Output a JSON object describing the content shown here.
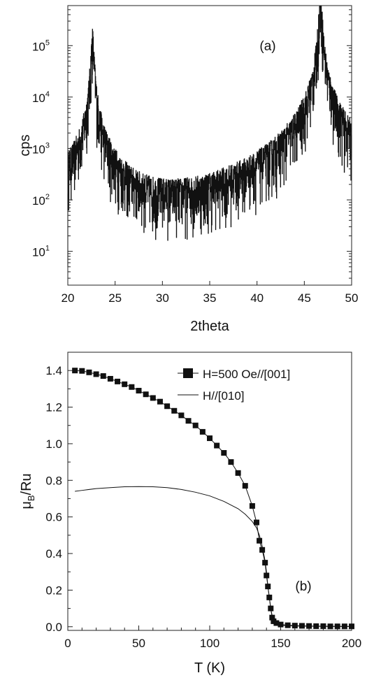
{
  "chart_data": [
    {
      "type": "line",
      "panel_label": "(a)",
      "xlabel": "2theta",
      "ylabel": "cps",
      "xlim": [
        20,
        50
      ],
      "ylim": [
        2.2,
        600000
      ],
      "y_scale": "log",
      "x_ticks": [
        "20",
        "25",
        "30",
        "35",
        "40",
        "45",
        "50"
      ],
      "y_ticks": [
        {
          "base": "10",
          "exp": "1",
          "value": 10
        },
        {
          "base": "10",
          "exp": "2",
          "value": 100
        },
        {
          "base": "10",
          "exp": "3",
          "value": 1000
        },
        {
          "base": "10",
          "exp": "4",
          "value": 10000
        },
        {
          "base": "10",
          "exp": "5",
          "value": 100000
        }
      ],
      "grid": false,
      "series": [
        {
          "peaks": [
            {
              "x": 22.6,
              "y": 90000
            },
            {
              "x": 46.7,
              "y": 600000
            }
          ],
          "background_level": 5
        }
      ]
    },
    {
      "type": "line",
      "panel_label": "(b)",
      "xlabel": "T (K)",
      "ylabel_main": "μ",
      "ylabel_sub": "B",
      "ylabel_tail": "/Ru",
      "xlim": [
        0,
        200
      ],
      "ylim": [
        -0.02,
        1.5
      ],
      "x_ticks": [
        "0",
        "50",
        "100",
        "150",
        "200"
      ],
      "y_ticks": [
        "0.0",
        "0.2",
        "0.4",
        "0.6",
        "0.8",
        "1.0",
        "1.2",
        "1.4"
      ],
      "grid": false,
      "legend_position": "top-right",
      "series": [
        {
          "name": "H=500 Oe//[001]",
          "marker": "square",
          "points": [
            [
              5,
              1.4
            ],
            [
              10,
              1.398
            ],
            [
              15,
              1.39
            ],
            [
              20,
              1.38
            ],
            [
              25,
              1.37
            ],
            [
              30,
              1.355
            ],
            [
              35,
              1.34
            ],
            [
              40,
              1.325
            ],
            [
              45,
              1.31
            ],
            [
              50,
              1.29
            ],
            [
              55,
              1.27
            ],
            [
              60,
              1.25
            ],
            [
              65,
              1.23
            ],
            [
              70,
              1.205
            ],
            [
              75,
              1.18
            ],
            [
              80,
              1.155
            ],
            [
              85,
              1.125
            ],
            [
              90,
              1.1
            ],
            [
              95,
              1.065
            ],
            [
              100,
              1.03
            ],
            [
              105,
              0.99
            ],
            [
              110,
              0.95
            ],
            [
              115,
              0.9
            ],
            [
              120,
              0.84
            ],
            [
              125,
              0.77
            ],
            [
              130,
              0.66
            ],
            [
              133,
              0.57
            ],
            [
              135,
              0.47
            ],
            [
              137,
              0.42
            ],
            [
              139,
              0.35
            ],
            [
              140,
              0.28
            ],
            [
              141,
              0.22
            ],
            [
              142,
              0.16
            ],
            [
              143,
              0.1
            ],
            [
              144,
              0.05
            ],
            [
              145,
              0.03
            ],
            [
              147,
              0.02
            ],
            [
              150,
              0.012
            ],
            [
              155,
              0.008
            ],
            [
              160,
              0.006
            ],
            [
              165,
              0.005
            ],
            [
              170,
              0.004
            ],
            [
              175,
              0.003
            ],
            [
              180,
              0.003
            ],
            [
              185,
              0.002
            ],
            [
              190,
              0.002
            ],
            [
              195,
              0.002
            ],
            [
              200,
              0.002
            ]
          ]
        },
        {
          "name": "H//[010]",
          "marker": "none",
          "points": [
            [
              5,
              0.74
            ],
            [
              10,
              0.745
            ],
            [
              20,
              0.755
            ],
            [
              30,
              0.76
            ],
            [
              40,
              0.765
            ],
            [
              50,
              0.766
            ],
            [
              60,
              0.765
            ],
            [
              70,
              0.76
            ],
            [
              80,
              0.75
            ],
            [
              90,
              0.735
            ],
            [
              100,
              0.715
            ],
            [
              110,
              0.685
            ],
            [
              120,
              0.645
            ],
            [
              125,
              0.615
            ],
            [
              130,
              0.575
            ],
            [
              133,
              0.54
            ],
            [
              135,
              0.5
            ],
            [
              137,
              0.44
            ],
            [
              139,
              0.36
            ],
            [
              140,
              0.3
            ],
            [
              141,
              0.22
            ],
            [
              142,
              0.16
            ],
            [
              143,
              0.1
            ],
            [
              144,
              0.06
            ],
            [
              145,
              0.03
            ],
            [
              147,
              0.015
            ],
            [
              150,
              0.008
            ],
            [
              160,
              0.004
            ],
            [
              180,
              0.002
            ],
            [
              200,
              0.001
            ]
          ]
        }
      ]
    }
  ]
}
